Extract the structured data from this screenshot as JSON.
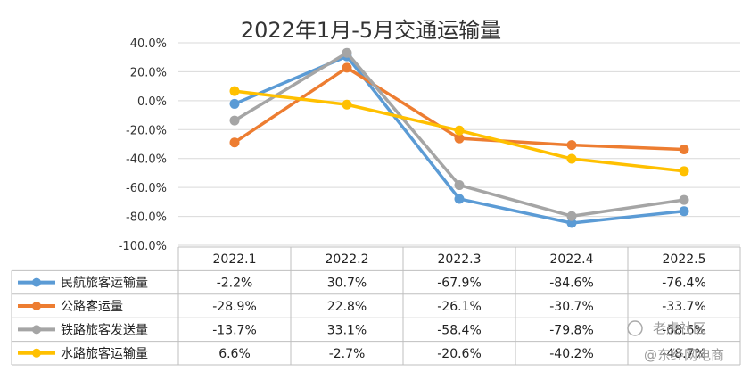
{
  "chart_data": {
    "type": "line",
    "title": "2022年1月-5月交通运输量",
    "categories": [
      "2022.1",
      "2022.2",
      "2022.3",
      "2022.4",
      "2022.5"
    ],
    "ylim": [
      -100,
      40
    ],
    "yticks": [
      40,
      20,
      0,
      -20,
      -40,
      -60,
      -80,
      -100
    ],
    "ytick_labels": [
      "40.0%",
      "20.0%",
      "0.0%",
      "-20.0%",
      "-40.0%",
      "-60.0%",
      "-80.0%",
      "-100.0%"
    ],
    "grid": true,
    "series": [
      {
        "name": "民航旅客运输量",
        "color": "#5b9bd5",
        "values": [
          -2.2,
          30.7,
          -67.9,
          -84.6,
          -76.4
        ],
        "labels": [
          "-2.2%",
          "30.7%",
          "-67.9%",
          "-84.6%",
          "-76.4%"
        ]
      },
      {
        "name": "公路客运量",
        "color": "#ed7d31",
        "values": [
          -28.9,
          22.8,
          -26.1,
          -30.7,
          -33.7
        ],
        "labels": [
          "-28.9%",
          "22.8%",
          "-26.1%",
          "-30.7%",
          "-33.7%"
        ]
      },
      {
        "name": "铁路旅客发送量",
        "color": "#a5a5a5",
        "values": [
          -13.7,
          33.1,
          -58.4,
          -79.8,
          -68.6
        ],
        "labels": [
          "-13.7%",
          "33.1%",
          "-58.4%",
          "-79.8%",
          "-68.6%"
        ]
      },
      {
        "name": "水路旅客运输量",
        "color": "#ffc000",
        "values": [
          6.6,
          -2.7,
          -20.6,
          -40.2,
          -48.7
        ],
        "labels": [
          "6.6%",
          "-2.7%",
          "-20.6%",
          "-40.2%",
          "-48.7%"
        ]
      }
    ]
  },
  "watermark": {
    "text": "老虎社区",
    "handle": "@东经网电商"
  }
}
